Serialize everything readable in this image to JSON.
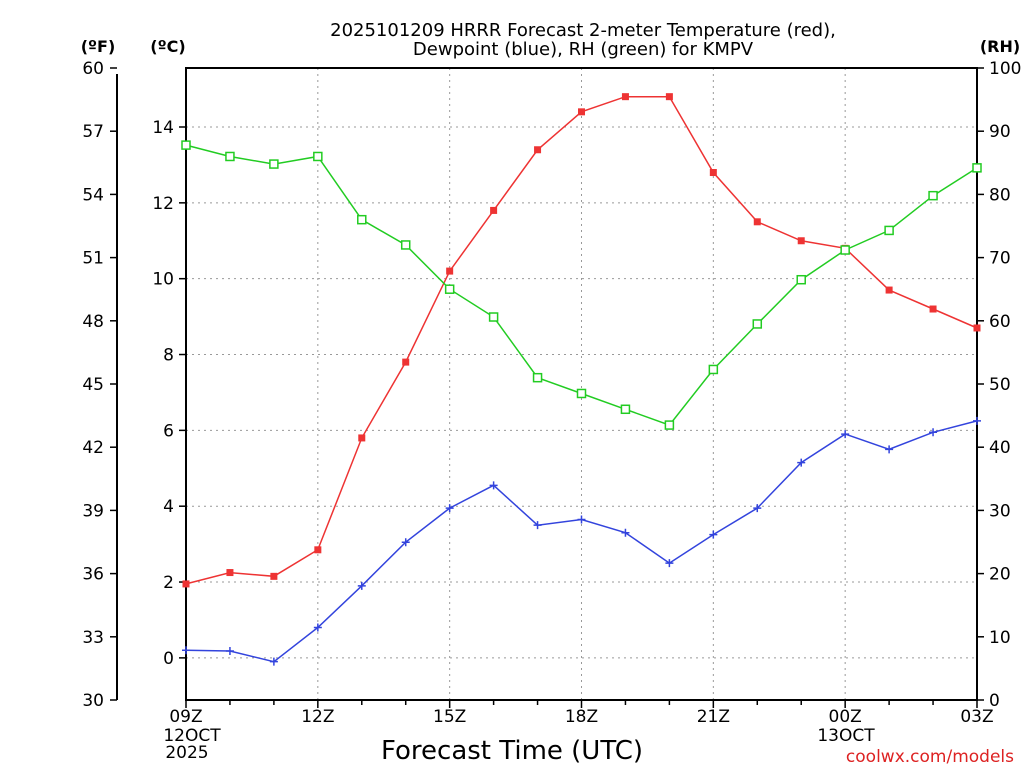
{
  "title_line1": "2025101209 HRRR Forecast 2-meter Temperature (red),",
  "title_line2": "Dewpoint (blue), RH (green) for KMPV",
  "unit_f": "(ºF)",
  "unit_c": "(ºC)",
  "unit_rh": "(RH)",
  "xlabel": "Forecast Time (UTC)",
  "credit": "coolwx.com/models",
  "date_start": [
    "12OCT",
    "2025"
  ],
  "date_next": "13OCT",
  "colors": {
    "temp": "#ee3333",
    "dew": "#3344dd",
    "rh": "#22cc22",
    "credit": "#dd2222"
  },
  "chart_data": {
    "type": "line",
    "x": [
      "09Z",
      "10Z",
      "11Z",
      "12Z",
      "13Z",
      "14Z",
      "15Z",
      "16Z",
      "17Z",
      "18Z",
      "19Z",
      "20Z",
      "21Z",
      "22Z",
      "23Z",
      "00Z",
      "01Z",
      "02Z",
      "03Z"
    ],
    "x_tick_labels": [
      "09Z",
      "12Z",
      "15Z",
      "18Z",
      "21Z",
      "00Z",
      "03Z"
    ],
    "left_axis_f": {
      "ticks": [
        30,
        33,
        36,
        39,
        42,
        45,
        48,
        51,
        54,
        57,
        60
      ],
      "range": [
        30,
        60
      ]
    },
    "left_axis_c": {
      "ticks": [
        0,
        2,
        4,
        6,
        8,
        10,
        12,
        14
      ],
      "range": [
        -1.111,
        15.556
      ]
    },
    "right_axis_rh": {
      "ticks": [
        0,
        10,
        20,
        30,
        40,
        50,
        60,
        70,
        80,
        90,
        100
      ],
      "range": [
        0,
        100
      ]
    },
    "series": [
      {
        "name": "Temperature",
        "axis": "celsius",
        "marker": "filled-square",
        "values": [
          1.95,
          2.25,
          2.15,
          2.85,
          5.8,
          7.8,
          10.2,
          11.8,
          13.4,
          14.4,
          14.8,
          14.8,
          12.8,
          11.5,
          11.0,
          10.8,
          9.7,
          9.2,
          8.7
        ]
      },
      {
        "name": "Dewpoint",
        "axis": "celsius",
        "marker": "plus",
        "values": [
          0.2,
          0.18,
          -0.1,
          0.8,
          1.9,
          3.05,
          3.95,
          4.55,
          3.5,
          3.65,
          3.3,
          2.5,
          3.25,
          3.95,
          5.15,
          5.9,
          5.5,
          5.95,
          6.25
        ]
      },
      {
        "name": "RH",
        "axis": "percent",
        "marker": "open-square",
        "values": [
          87.8,
          86.0,
          84.8,
          86.0,
          76.0,
          72.0,
          65.0,
          60.6,
          51.0,
          48.5,
          46.0,
          43.5,
          52.3,
          59.5,
          66.5,
          71.2,
          74.3,
          79.8,
          84.2
        ]
      }
    ]
  }
}
